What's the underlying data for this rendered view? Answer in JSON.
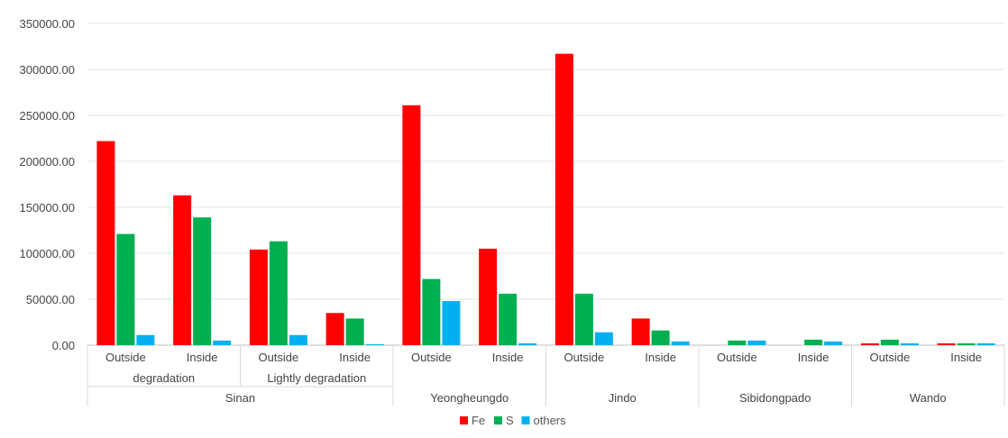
{
  "chart_data": {
    "type": "bar",
    "y_ticks": [
      "0.00",
      "50000.00",
      "100000.00",
      "150000.00",
      "200000.00",
      "250000.00",
      "300000.00",
      "350000.00"
    ],
    "ylim": [
      0,
      350000
    ],
    "grid": true,
    "legend_position": "bottom",
    "categories": [
      {
        "label": "Outside",
        "sub": "degradation",
        "region": "Sinan"
      },
      {
        "label": "Inside",
        "sub": "degradation",
        "region": "Sinan"
      },
      {
        "label": "Outside",
        "sub": "Lightly degradation",
        "region": "Sinan"
      },
      {
        "label": "Inside",
        "sub": "Lightly degradation",
        "region": "Sinan"
      },
      {
        "label": "Outside",
        "sub": "",
        "region": "Yeongheungdo"
      },
      {
        "label": "Inside",
        "sub": "",
        "region": "Yeongheungdo"
      },
      {
        "label": "Outside",
        "sub": "",
        "region": "Jindo"
      },
      {
        "label": "Inside",
        "sub": "",
        "region": "Jindo"
      },
      {
        "label": "Outside",
        "sub": "",
        "region": "Sibidongpado"
      },
      {
        "label": "Inside",
        "sub": "",
        "region": "Sibidongpado"
      },
      {
        "label": "Outside",
        "sub": "",
        "region": "Wando"
      },
      {
        "label": "Inside",
        "sub": "",
        "region": "Wando"
      }
    ],
    "sub_groups": [
      {
        "label": "degradation",
        "start": 0,
        "end": 1
      },
      {
        "label": "Lightly degradation",
        "start": 2,
        "end": 3
      }
    ],
    "regions": [
      {
        "label": "Sinan",
        "start": 0,
        "end": 3
      },
      {
        "label": "Yeongheungdo",
        "start": 4,
        "end": 5
      },
      {
        "label": "Jindo",
        "start": 6,
        "end": 7
      },
      {
        "label": "Sibidongpado",
        "start": 8,
        "end": 9
      },
      {
        "label": "Wando",
        "start": 10,
        "end": 11
      }
    ],
    "series": [
      {
        "name": "Fe",
        "color": "#ff0000",
        "values": [
          222000,
          163000,
          104000,
          35000,
          261000,
          105000,
          317000,
          29000,
          0,
          0,
          2000,
          2000
        ]
      },
      {
        "name": "S",
        "color": "#00b050",
        "values": [
          121000,
          139000,
          113000,
          29000,
          72000,
          56000,
          56000,
          16000,
          5000,
          6000,
          6000,
          2000
        ]
      },
      {
        "name": "others",
        "color": "#00b0f0",
        "values": [
          11000,
          5000,
          11000,
          1000,
          48000,
          2000,
          14000,
          4000,
          5000,
          4000,
          2000,
          2000
        ]
      }
    ]
  }
}
